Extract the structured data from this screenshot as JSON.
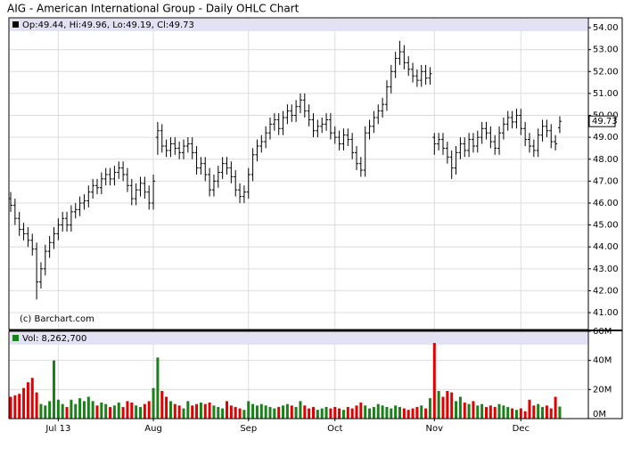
{
  "chart_data": {
    "type": "ohlc",
    "title": "AIG - American International Group - Daily OHLC Chart",
    "watermark": "(c) Barchart.com",
    "price_info": "Op:49.44, Hi:49.96, Lo:49.19, Cl:49.73",
    "volume_info": "Vol: 8,262,700",
    "color": "#000000",
    "grid": true,
    "categories": [
      null,
      null,
      null,
      null,
      null,
      null,
      null,
      null,
      null,
      null,
      null,
      "Jul 13",
      null,
      null,
      null,
      null,
      null,
      null,
      null,
      null,
      null,
      null,
      null,
      null,
      null,
      null,
      null,
      null,
      null,
      null,
      null,
      null,
      null,
      "Aug",
      null,
      null,
      null,
      null,
      null,
      null,
      null,
      null,
      null,
      null,
      null,
      null,
      null,
      null,
      null,
      null,
      null,
      null,
      null,
      null,
      null,
      "Sep",
      null,
      null,
      null,
      null,
      null,
      null,
      null,
      null,
      null,
      null,
      null,
      null,
      null,
      null,
      null,
      null,
      null,
      null,
      null,
      "Oct",
      null,
      null,
      null,
      null,
      null,
      null,
      null,
      null,
      null,
      null,
      null,
      null,
      null,
      null,
      null,
      null,
      null,
      null,
      null,
      null,
      null,
      null,
      "Nov",
      null,
      null,
      null,
      null,
      null,
      null,
      null,
      null,
      null,
      null,
      null,
      null,
      null,
      null,
      null,
      null,
      null,
      null,
      null,
      "Dec",
      null,
      null,
      null,
      null,
      null,
      null,
      null,
      null,
      null
    ],
    "open": [
      46.2,
      45.9,
      45.3,
      44.8,
      44.6,
      44.3,
      43.9,
      42.4,
      43.0,
      43.8,
      44.2,
      44.6,
      45.0,
      45.3,
      45.0,
      45.6,
      45.7,
      46.0,
      46.1,
      46.5,
      46.8,
      46.7,
      47.1,
      47.3,
      47.1,
      47.4,
      47.6,
      47.3,
      46.8,
      46.2,
      46.6,
      46.9,
      46.5,
      46.0,
      49.0,
      49.3,
      48.6,
      48.4,
      48.7,
      48.5,
      48.3,
      48.6,
      48.7,
      48.3,
      47.6,
      47.8,
      47.3,
      46.6,
      47.0,
      47.4,
      47.8,
      47.6,
      47.2,
      46.6,
      46.3,
      46.5,
      47.3,
      48.2,
      48.6,
      48.8,
      49.2,
      49.6,
      49.8,
      49.4,
      49.9,
      50.2,
      50.0,
      50.4,
      50.7,
      50.2,
      49.8,
      49.3,
      49.5,
      49.6,
      49.8,
      49.2,
      49.0,
      48.7,
      49.1,
      48.9,
      48.3,
      47.8,
      47.5,
      49.2,
      49.5,
      49.9,
      50.2,
      50.5,
      51.3,
      52.0,
      52.6,
      52.9,
      52.4,
      52.1,
      51.8,
      51.6,
      52.0,
      51.7,
      49.0,
      48.7,
      48.9,
      48.5,
      48.1,
      47.6,
      48.3,
      48.7,
      48.4,
      48.9,
      48.6,
      49.0,
      49.4,
      49.2,
      48.8,
      48.5,
      49.2,
      49.6,
      49.9,
      49.7,
      50.0,
      49.4,
      48.9,
      48.6,
      48.4,
      49.1,
      49.5,
      49.3,
      48.8,
      49.44
    ],
    "high": [
      46.5,
      46.2,
      45.6,
      45.1,
      44.9,
      44.6,
      44.2,
      43.3,
      44.1,
      44.5,
      44.9,
      45.3,
      45.6,
      45.6,
      45.9,
      46.0,
      46.3,
      46.4,
      46.8,
      47.1,
      47.1,
      47.4,
      47.6,
      47.6,
      47.7,
      47.9,
      47.9,
      47.6,
      47.1,
      46.9,
      47.2,
      47.2,
      46.8,
      47.3,
      49.7,
      49.6,
      48.9,
      49.0,
      49.0,
      48.8,
      48.9,
      49.0,
      49.0,
      48.6,
      48.1,
      48.1,
      47.6,
      47.3,
      47.7,
      48.1,
      48.1,
      47.9,
      47.5,
      46.9,
      46.8,
      47.6,
      48.5,
      48.9,
      49.1,
      49.5,
      49.9,
      50.1,
      50.1,
      50.2,
      50.5,
      50.5,
      50.7,
      51.0,
      51.0,
      50.5,
      50.1,
      49.8,
      49.9,
      50.1,
      50.1,
      49.5,
      49.3,
      49.4,
      49.4,
      49.2,
      48.6,
      48.1,
      49.5,
      49.8,
      50.2,
      50.5,
      50.8,
      51.6,
      52.3,
      52.9,
      53.4,
      53.2,
      52.7,
      52.4,
      52.1,
      52.3,
      52.3,
      52.2,
      49.2,
      49.2,
      49.2,
      48.8,
      48.4,
      48.6,
      49.0,
      49.0,
      49.2,
      49.2,
      49.3,
      49.7,
      49.7,
      49.5,
      49.1,
      49.5,
      49.9,
      50.2,
      50.2,
      50.3,
      50.3,
      49.7,
      49.2,
      48.9,
      49.4,
      49.8,
      49.8,
      49.6,
      49.1,
      49.96
    ],
    "low": [
      45.6,
      45.0,
      44.5,
      44.3,
      44.0,
      43.6,
      41.6,
      42.1,
      42.7,
      43.5,
      43.9,
      44.3,
      44.7,
      44.7,
      44.7,
      45.3,
      45.4,
      45.7,
      45.8,
      46.2,
      46.4,
      46.4,
      46.8,
      46.8,
      46.8,
      47.1,
      47.0,
      46.5,
      45.9,
      45.9,
      46.3,
      46.2,
      45.7,
      45.7,
      48.2,
      48.3,
      48.1,
      48.1,
      48.2,
      48.0,
      48.0,
      48.3,
      48.0,
      47.3,
      47.3,
      47.0,
      46.3,
      46.3,
      46.7,
      47.1,
      47.3,
      46.9,
      46.3,
      46.0,
      46.0,
      46.2,
      47.0,
      47.9,
      48.3,
      48.5,
      48.9,
      49.3,
      49.1,
      49.1,
      49.6,
      49.7,
      49.7,
      50.1,
      49.9,
      49.5,
      49.0,
      49.0,
      49.2,
      49.3,
      48.9,
      48.7,
      48.4,
      48.4,
      48.6,
      48.0,
      47.5,
      47.2,
      47.2,
      48.9,
      49.2,
      49.6,
      49.9,
      50.2,
      51.0,
      51.7,
      52.3,
      52.1,
      51.8,
      51.5,
      51.3,
      51.3,
      51.4,
      51.4,
      48.2,
      48.4,
      48.2,
      47.8,
      47.1,
      47.3,
      48.0,
      48.1,
      48.1,
      48.3,
      48.3,
      48.7,
      48.9,
      48.5,
      48.2,
      48.2,
      48.9,
      49.3,
      49.4,
      49.4,
      49.1,
      48.6,
      48.3,
      48.1,
      48.1,
      48.8,
      49.0,
      48.5,
      48.4,
      49.19
    ],
    "close": [
      45.9,
      45.3,
      44.8,
      44.6,
      44.3,
      43.9,
      42.4,
      43.0,
      43.8,
      44.2,
      44.6,
      45.0,
      45.3,
      45.0,
      45.6,
      45.7,
      46.0,
      46.1,
      46.5,
      46.8,
      46.7,
      47.1,
      47.3,
      47.1,
      47.4,
      47.6,
      47.3,
      46.8,
      46.2,
      46.6,
      46.9,
      46.5,
      46.0,
      47.0,
      49.3,
      48.6,
      48.4,
      48.7,
      48.5,
      48.3,
      48.6,
      48.7,
      48.3,
      47.6,
      47.8,
      47.3,
      46.6,
      47.0,
      47.4,
      47.8,
      47.6,
      47.2,
      46.6,
      46.3,
      46.5,
      47.3,
      48.2,
      48.6,
      48.8,
      49.2,
      49.6,
      49.8,
      49.4,
      49.9,
      50.2,
      50.0,
      50.4,
      50.7,
      50.2,
      49.8,
      49.3,
      49.5,
      49.6,
      49.8,
      49.2,
      49.0,
      48.7,
      49.1,
      48.9,
      48.3,
      47.8,
      47.5,
      49.2,
      49.5,
      49.9,
      50.2,
      50.5,
      51.3,
      52.0,
      52.6,
      52.9,
      52.4,
      52.1,
      51.8,
      51.6,
      52.0,
      51.7,
      51.9,
      48.7,
      48.9,
      48.5,
      48.1,
      47.6,
      48.3,
      48.7,
      48.4,
      48.9,
      48.6,
      49.0,
      49.4,
      49.2,
      48.8,
      48.5,
      49.2,
      49.6,
      49.9,
      49.7,
      50.0,
      49.4,
      48.9,
      48.6,
      48.4,
      49.1,
      49.5,
      49.3,
      48.8,
      48.7,
      49.73
    ],
    "ylim": [
      40.23,
      54.45
    ],
    "yticks": [
      {
        "value": 41,
        "label": "41.00"
      },
      {
        "value": 42,
        "label": "42.00"
      },
      {
        "value": 43,
        "label": "43.00"
      },
      {
        "value": 44,
        "label": "44.00"
      },
      {
        "value": 45,
        "label": "45.00"
      },
      {
        "value": 46,
        "label": "46.00"
      },
      {
        "value": 47,
        "label": "47.00"
      },
      {
        "value": 48,
        "label": "48.00"
      },
      {
        "value": 49,
        "label": "49.00"
      },
      {
        "value": 50,
        "label": "50.00"
      },
      {
        "value": 51,
        "label": "51.00"
      },
      {
        "value": 52,
        "label": "52.00"
      },
      {
        "value": 53,
        "label": "53.00"
      },
      {
        "value": 54,
        "label": "54.00"
      }
    ],
    "volume": {
      "up_color": "#1a801a",
      "down_color": "#e00000",
      "values": [
        15,
        16,
        17,
        21,
        25,
        28,
        18,
        10,
        9,
        12,
        40,
        13,
        10,
        8,
        13,
        10,
        14,
        12,
        15,
        12,
        9,
        11,
        10,
        8,
        9,
        11,
        8,
        12,
        11,
        9,
        8,
        10,
        12,
        21,
        42,
        19,
        15,
        12,
        10,
        9,
        7,
        12,
        9,
        10,
        11,
        10,
        11,
        9,
        8,
        7,
        12,
        9,
        8,
        7,
        6,
        12,
        10,
        9,
        10,
        9,
        8,
        7,
        8,
        9,
        10,
        9,
        8,
        12,
        9,
        7,
        8,
        6,
        7,
        8,
        7,
        8,
        7,
        6,
        8,
        7,
        9,
        11,
        9,
        7,
        8,
        10,
        9,
        8,
        7,
        9,
        8,
        7,
        6,
        7,
        8,
        9,
        7,
        14,
        52,
        19,
        15,
        19,
        18,
        12,
        15,
        11,
        10,
        12,
        9,
        10,
        8,
        9,
        8,
        10,
        9,
        8,
        7,
        6,
        7,
        5,
        13,
        9,
        10,
        8,
        9,
        7,
        15,
        8.2627
      ],
      "ylim": [
        0,
        60
      ],
      "yticks": [
        {
          "value": 0,
          "label": "0M"
        },
        {
          "value": 20,
          "label": "20M"
        },
        {
          "value": 40,
          "label": "40M"
        },
        {
          "value": 60,
          "label": "60M"
        }
      ]
    }
  }
}
